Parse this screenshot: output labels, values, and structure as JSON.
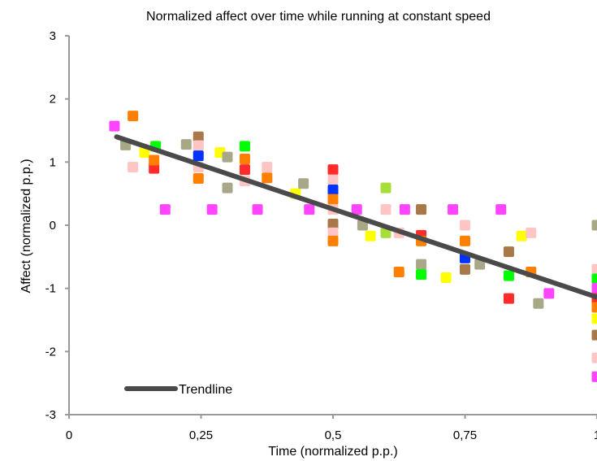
{
  "chart_data": {
    "type": "scatter",
    "title": "Normalized affect over time while running at constant speed",
    "xlabel": "Time (normalized p.p.)",
    "ylabel": "Affect (normalized p.p.)",
    "xlim": [
      0,
      1
    ],
    "ylim": [
      -3,
      3
    ],
    "x_ticks": [
      0,
      0.25,
      0.5,
      0.75,
      1
    ],
    "x_tick_labels": [
      "0",
      "0,25",
      "0,5",
      "0,75",
      "1"
    ],
    "y_ticks": [
      -3,
      -2,
      -1,
      0,
      1,
      2,
      3
    ],
    "y_tick_labels": [
      "-3",
      "-2",
      "-1",
      "0",
      "1",
      "2",
      "3"
    ],
    "grid": false,
    "legend": {
      "position": "bottom-left",
      "entries": [
        {
          "label": "Trendline",
          "color": "#4a4a4a"
        }
      ]
    },
    "trendline": {
      "name": "Trendline",
      "x": [
        0.09,
        1.0
      ],
      "y": [
        1.4,
        -1.14
      ],
      "color": "#4a4a4a"
    },
    "points": [
      {
        "x": 0.086,
        "y": 1.57,
        "color": "#ff44ff"
      },
      {
        "x": 0.107,
        "y": 1.27,
        "color": "#a8a888"
      },
      {
        "x": 0.121,
        "y": 1.73,
        "color": "#ff7f00"
      },
      {
        "x": 0.121,
        "y": 0.92,
        "color": "#ffc4c4"
      },
      {
        "x": 0.143,
        "y": 1.15,
        "color": "#ffff00"
      },
      {
        "x": 0.161,
        "y": 0.9,
        "color": "#ff2a2a"
      },
      {
        "x": 0.161,
        "y": 1.03,
        "color": "#ff7f00"
      },
      {
        "x": 0.164,
        "y": 1.25,
        "color": "#00ff00"
      },
      {
        "x": 0.182,
        "y": 0.25,
        "color": "#ff44ff"
      },
      {
        "x": 0.222,
        "y": 1.28,
        "color": "#a8a888"
      },
      {
        "x": 0.245,
        "y": 1.4,
        "color": "#a87848"
      },
      {
        "x": 0.245,
        "y": 1.26,
        "color": "#ffc4c4"
      },
      {
        "x": 0.245,
        "y": 1.1,
        "color": "#0033ff"
      },
      {
        "x": 0.245,
        "y": 0.92,
        "color": "#ffc4c4"
      },
      {
        "x": 0.245,
        "y": 0.74,
        "color": "#ff7f00"
      },
      {
        "x": 0.271,
        "y": 0.25,
        "color": "#ff44ff"
      },
      {
        "x": 0.286,
        "y": 1.15,
        "color": "#ffff00"
      },
      {
        "x": 0.3,
        "y": 1.08,
        "color": "#a8a888"
      },
      {
        "x": 0.3,
        "y": 0.59,
        "color": "#a8a888"
      },
      {
        "x": 0.333,
        "y": 1.25,
        "color": "#00ff00"
      },
      {
        "x": 0.333,
        "y": 1.05,
        "color": "#ff7f00"
      },
      {
        "x": 0.333,
        "y": 0.88,
        "color": "#ff2a2a"
      },
      {
        "x": 0.333,
        "y": 0.7,
        "color": "#ffc4c4"
      },
      {
        "x": 0.357,
        "y": 0.25,
        "color": "#ff44ff"
      },
      {
        "x": 0.375,
        "y": 0.92,
        "color": "#ffc4c4"
      },
      {
        "x": 0.375,
        "y": 0.75,
        "color": "#ff7f00"
      },
      {
        "x": 0.429,
        "y": 0.5,
        "color": "#ffff00"
      },
      {
        "x": 0.444,
        "y": 0.66,
        "color": "#a8a888"
      },
      {
        "x": 0.455,
        "y": 0.25,
        "color": "#ff44ff"
      },
      {
        "x": 0.5,
        "y": 0.88,
        "color": "#ff2a2a"
      },
      {
        "x": 0.5,
        "y": 0.72,
        "color": "#ffc4c4"
      },
      {
        "x": 0.5,
        "y": 0.56,
        "color": "#0033ff"
      },
      {
        "x": 0.5,
        "y": 0.41,
        "color": "#ff7f00"
      },
      {
        "x": 0.5,
        "y": 0.25,
        "color": "#ffc4c4"
      },
      {
        "x": 0.5,
        "y": 0.02,
        "color": "#a87848"
      },
      {
        "x": 0.5,
        "y": -0.12,
        "color": "#ffc4c4"
      },
      {
        "x": 0.5,
        "y": -0.25,
        "color": "#ff7f00"
      },
      {
        "x": 0.545,
        "y": 0.25,
        "color": "#ff44ff"
      },
      {
        "x": 0.556,
        "y": 0.0,
        "color": "#a8a888"
      },
      {
        "x": 0.571,
        "y": -0.17,
        "color": "#ffff00"
      },
      {
        "x": 0.6,
        "y": 0.59,
        "color": "#a8dd3a"
      },
      {
        "x": 0.6,
        "y": 0.25,
        "color": "#ffc4c4"
      },
      {
        "x": 0.6,
        "y": -0.12,
        "color": "#a8dd3a"
      },
      {
        "x": 0.625,
        "y": -0.12,
        "color": "#ffc4c4"
      },
      {
        "x": 0.625,
        "y": -0.74,
        "color": "#ff7f00"
      },
      {
        "x": 0.636,
        "y": 0.25,
        "color": "#ff44ff"
      },
      {
        "x": 0.667,
        "y": 0.25,
        "color": "#a87848"
      },
      {
        "x": 0.667,
        "y": -0.16,
        "color": "#ff2a2a"
      },
      {
        "x": 0.667,
        "y": -0.25,
        "color": "#ff7f00"
      },
      {
        "x": 0.667,
        "y": -0.62,
        "color": "#a8a888"
      },
      {
        "x": 0.667,
        "y": -0.78,
        "color": "#00ff00"
      },
      {
        "x": 0.714,
        "y": -0.83,
        "color": "#ffff00"
      },
      {
        "x": 0.727,
        "y": 0.25,
        "color": "#ff44ff"
      },
      {
        "x": 0.75,
        "y": 0.0,
        "color": "#ffc4c4"
      },
      {
        "x": 0.75,
        "y": -0.25,
        "color": "#ff7f00"
      },
      {
        "x": 0.75,
        "y": -0.52,
        "color": "#0033ff"
      },
      {
        "x": 0.75,
        "y": -0.7,
        "color": "#a87848"
      },
      {
        "x": 0.778,
        "y": -0.62,
        "color": "#a8a888"
      },
      {
        "x": 0.818,
        "y": 0.25,
        "color": "#ff44ff"
      },
      {
        "x": 0.833,
        "y": -0.42,
        "color": "#a87848"
      },
      {
        "x": 0.833,
        "y": -0.8,
        "color": "#00ff00"
      },
      {
        "x": 0.833,
        "y": -1.16,
        "color": "#ff2a2a"
      },
      {
        "x": 0.857,
        "y": -0.17,
        "color": "#ffff00"
      },
      {
        "x": 0.875,
        "y": -0.12,
        "color": "#ffc4c4"
      },
      {
        "x": 0.875,
        "y": -0.74,
        "color": "#ff7f00"
      },
      {
        "x": 0.889,
        "y": -1.24,
        "color": "#a8a888"
      },
      {
        "x": 0.909,
        "y": -1.08,
        "color": "#ff44ff"
      },
      {
        "x": 1.0,
        "y": 0.0,
        "color": "#a8a888"
      },
      {
        "x": 1.0,
        "y": -0.7,
        "color": "#ffc4c4"
      },
      {
        "x": 1.0,
        "y": -0.85,
        "color": "#00ff00"
      },
      {
        "x": 1.0,
        "y": -1.0,
        "color": "#ff44ff"
      },
      {
        "x": 1.0,
        "y": -1.16,
        "color": "#ff2a2a"
      },
      {
        "x": 1.0,
        "y": -1.3,
        "color": "#ff7f00"
      },
      {
        "x": 1.0,
        "y": -1.48,
        "color": "#ffff00"
      },
      {
        "x": 1.0,
        "y": -1.74,
        "color": "#a87848"
      },
      {
        "x": 1.0,
        "y": -2.1,
        "color": "#ffc4c4"
      },
      {
        "x": 1.0,
        "y": -2.4,
        "color": "#ff44ff"
      }
    ]
  }
}
